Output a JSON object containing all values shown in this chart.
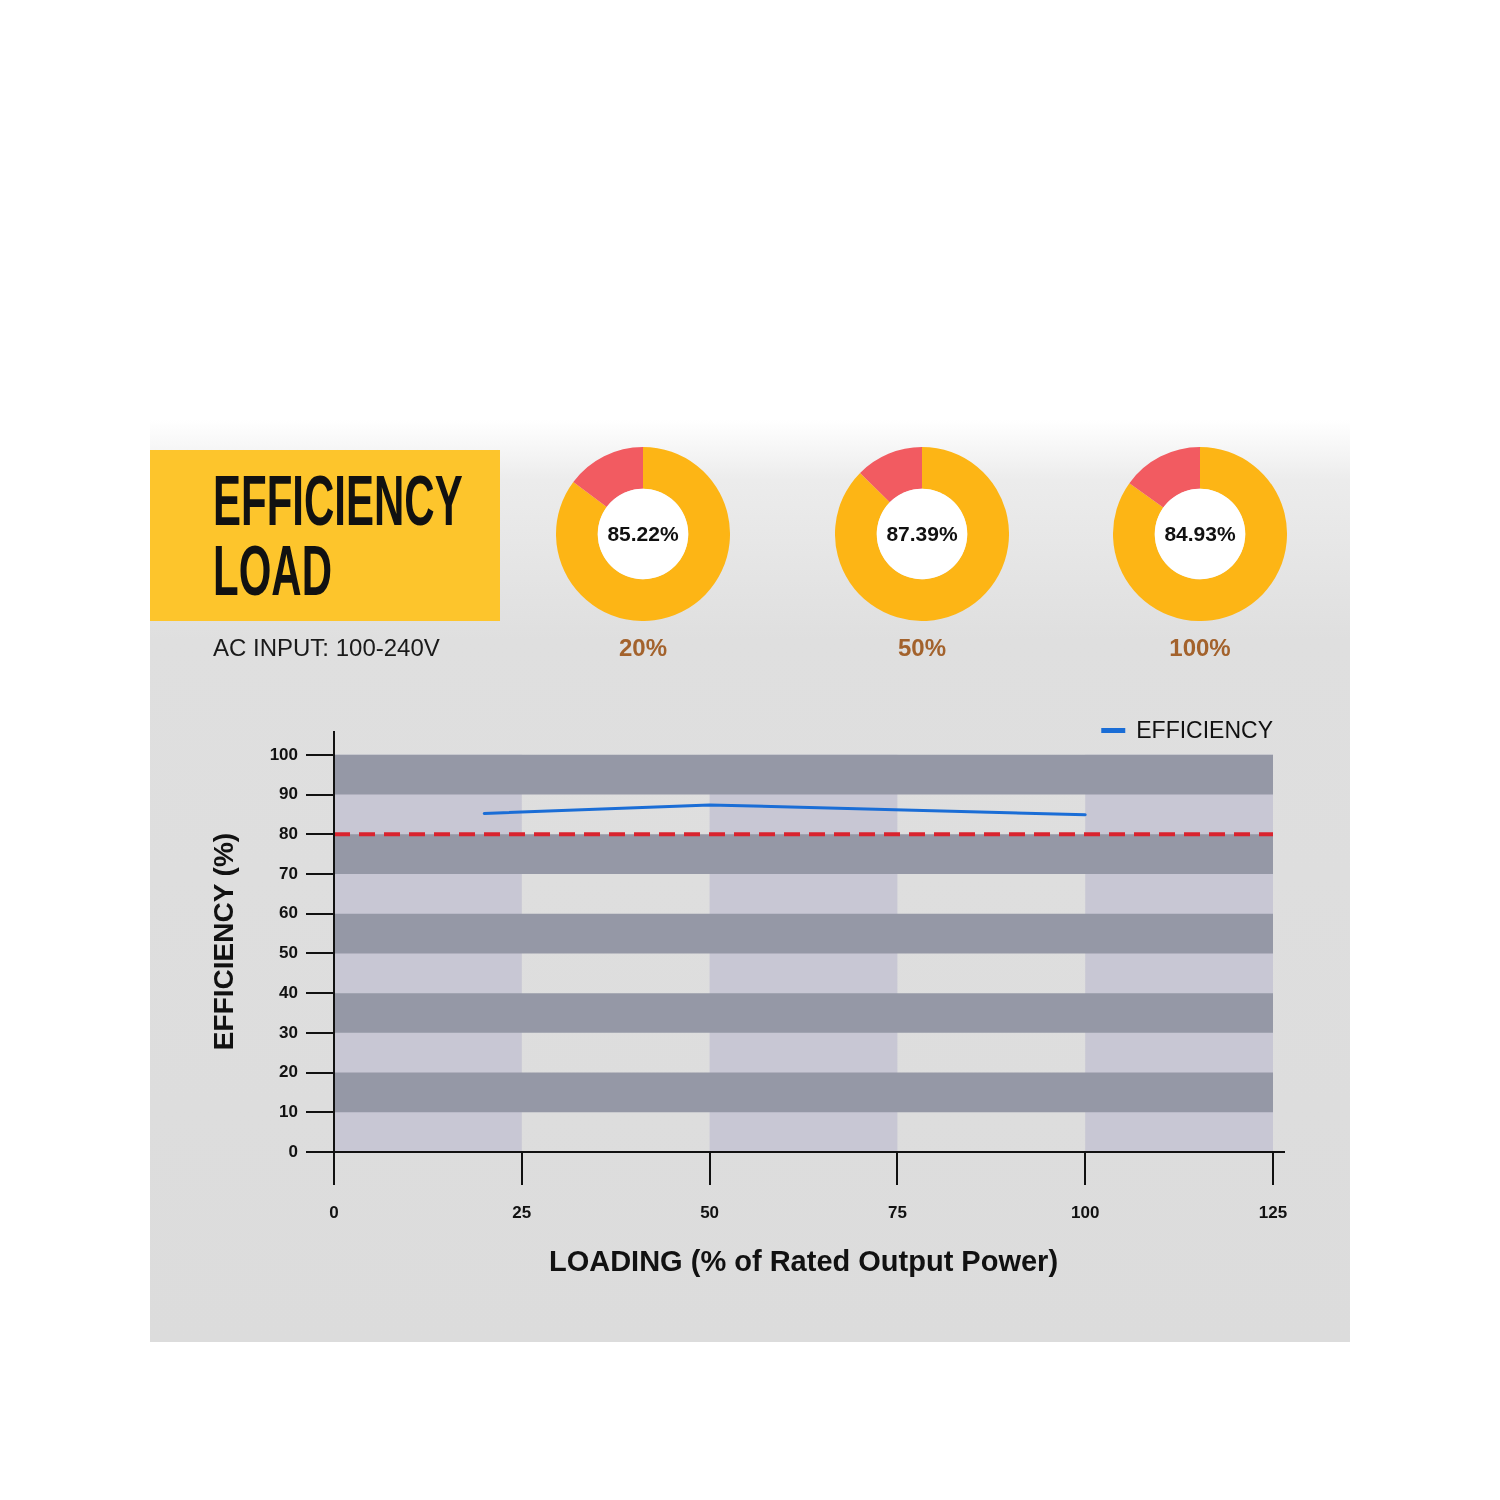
{
  "chart_data": [
    {
      "type": "other",
      "title": "EFFICIENCY LOAD",
      "subtitle": "AC INPUT: 100-240V"
    },
    {
      "type": "donut",
      "categories": [
        null,
        null
      ],
      "values": [
        85.22,
        14.78
      ],
      "colors": [
        "#fdb515",
        "#f25b61"
      ],
      "value_labels": [
        "85.22%",
        null
      ],
      "xlabel": "20%"
    },
    {
      "type": "donut",
      "categories": [
        null,
        null
      ],
      "values": [
        87.39,
        12.61
      ],
      "colors": [
        "#fdb515",
        "#f25b61"
      ],
      "value_labels": [
        "87.39%",
        null
      ],
      "xlabel": "50%"
    },
    {
      "type": "donut",
      "categories": [
        null,
        null
      ],
      "values": [
        84.93,
        15.07
      ],
      "colors": [
        "#fdb515",
        "#f25b61"
      ],
      "value_labels": [
        "84.93%",
        null
      ],
      "xlabel": "100%"
    },
    {
      "type": "line",
      "xlabel": "LOADING (% of Rated Output Power)",
      "ylabel": "EFFICIENCY (%)",
      "x": [
        20,
        50,
        100
      ],
      "series": [
        {
          "name": "EFFICIENCY",
          "color": "#1a6dd6",
          "values": [
            85.22,
            87.39,
            84.93
          ]
        }
      ],
      "xlim": [
        0,
        125
      ],
      "xticks": [
        0,
        25,
        50,
        75,
        100,
        125
      ],
      "ylim": [
        0,
        106
      ],
      "yticks": [
        0,
        10,
        20,
        30,
        40,
        50,
        60,
        70,
        80,
        90,
        100
      ],
      "ref_lines": [
        {
          "axis": "y",
          "value": 80,
          "color": "#d9232e",
          "line_style": "dashed"
        }
      ],
      "bands": [
        {
          "axis": "x",
          "from": 0,
          "to": 25,
          "color": "#c8c7d4"
        },
        {
          "axis": "x",
          "from": 50,
          "to": 75,
          "color": "#c8c7d4"
        },
        {
          "axis": "x",
          "from": 100,
          "to": 125,
          "color": "#c8c7d4"
        },
        {
          "axis": "y",
          "from": 10,
          "to": 20,
          "color": "#9598a6"
        },
        {
          "axis": "y",
          "from": 30,
          "to": 40,
          "color": "#9598a6"
        },
        {
          "axis": "y",
          "from": 50,
          "to": 60,
          "color": "#9598a6"
        },
        {
          "axis": "y",
          "from": 70,
          "to": 80,
          "color": "#9598a6"
        },
        {
          "axis": "y",
          "from": 90,
          "to": 100,
          "color": "#9598a6"
        }
      ],
      "legend": "top right",
      "marker": "none",
      "line_style": "solid"
    }
  ]
}
